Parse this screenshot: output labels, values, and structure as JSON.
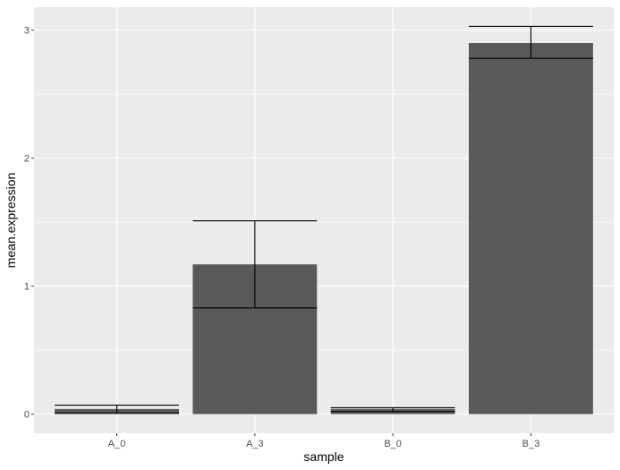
{
  "chart_data": {
    "type": "bar",
    "title": "",
    "xlabel": "sample",
    "ylabel": "mean.expression",
    "categories": [
      "A_0",
      "A_3",
      "B_0",
      "B_3"
    ],
    "values": [
      0.04,
      1.17,
      0.04,
      2.9
    ],
    "error_bars": [
      {
        "low": 0.01,
        "high": 0.07
      },
      {
        "low": 0.83,
        "high": 1.51
      },
      {
        "low": 0.02,
        "high": 0.05
      },
      {
        "low": 2.78,
        "high": 3.03
      }
    ],
    "y_ticks": [
      0,
      1,
      2,
      3
    ],
    "y_tick_labels": [
      "0",
      "1",
      "2",
      "3"
    ],
    "ylim": [
      -0.15,
      3.18
    ],
    "grid": true,
    "legend": "none",
    "colors": {
      "panel_background": "#ebebeb",
      "grid_major": "#ffffff",
      "bar_fill": "#595959",
      "error_bar": "#000000"
    }
  }
}
